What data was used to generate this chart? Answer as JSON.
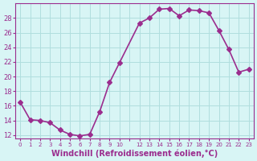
{
  "x": [
    0,
    1,
    2,
    3,
    4,
    5,
    6,
    7,
    8,
    9,
    10,
    12,
    13,
    14,
    15,
    16,
    17,
    18,
    19,
    20,
    21,
    22,
    23
  ],
  "y": [
    16.5,
    14.1,
    14.0,
    13.7,
    12.7,
    12.1,
    11.9,
    12.1,
    15.2,
    19.2,
    21.9,
    27.3,
    28.0,
    29.2,
    29.3,
    28.3,
    29.1,
    29.0,
    28.7,
    26.3,
    23.7,
    20.6,
    21.0
  ],
  "line_color": "#9b2d8e",
  "marker": "D",
  "markersize": 3,
  "linewidth": 1.2,
  "bg_color": "#d8f5f5",
  "grid_color": "#b0dede",
  "xlabel": "Windchill (Refroidissement éolien,°C)",
  "xlabel_color": "#9b2d8e",
  "xlabel_fontsize": 7,
  "ylabel_ticks": [
    12,
    14,
    16,
    18,
    20,
    22,
    24,
    26,
    28
  ],
  "xtick_labels": [
    "0",
    "1",
    "2",
    "3",
    "4",
    "5",
    "6",
    "7",
    "8",
    "9",
    "10",
    "",
    "12",
    "13",
    "14",
    "15",
    "16",
    "17",
    "18",
    "19",
    "20",
    "21",
    "22",
    "23"
  ],
  "ylim": [
    11.5,
    30.0
  ],
  "xlim": [
    -0.5,
    23.5
  ]
}
